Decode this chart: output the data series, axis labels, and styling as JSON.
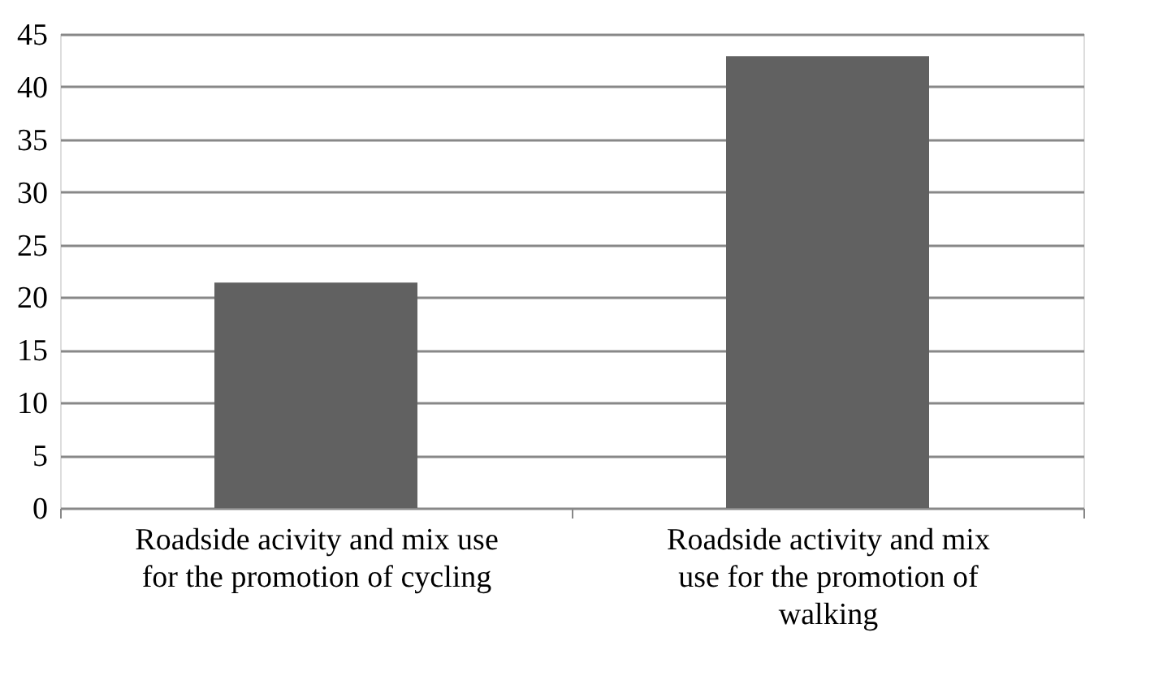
{
  "chart_data": {
    "type": "bar",
    "categories": [
      "Roadside acivity and mix use for the promotion of cycling",
      "Roadside activity and mix use for the promotion of walking"
    ],
    "values": [
      21.4,
      42.9
    ],
    "color": "#616161",
    "ylim": [
      0,
      45
    ],
    "yticks": [
      0,
      5,
      10,
      15,
      20,
      25,
      30,
      35,
      40,
      45
    ],
    "grid": "y"
  }
}
